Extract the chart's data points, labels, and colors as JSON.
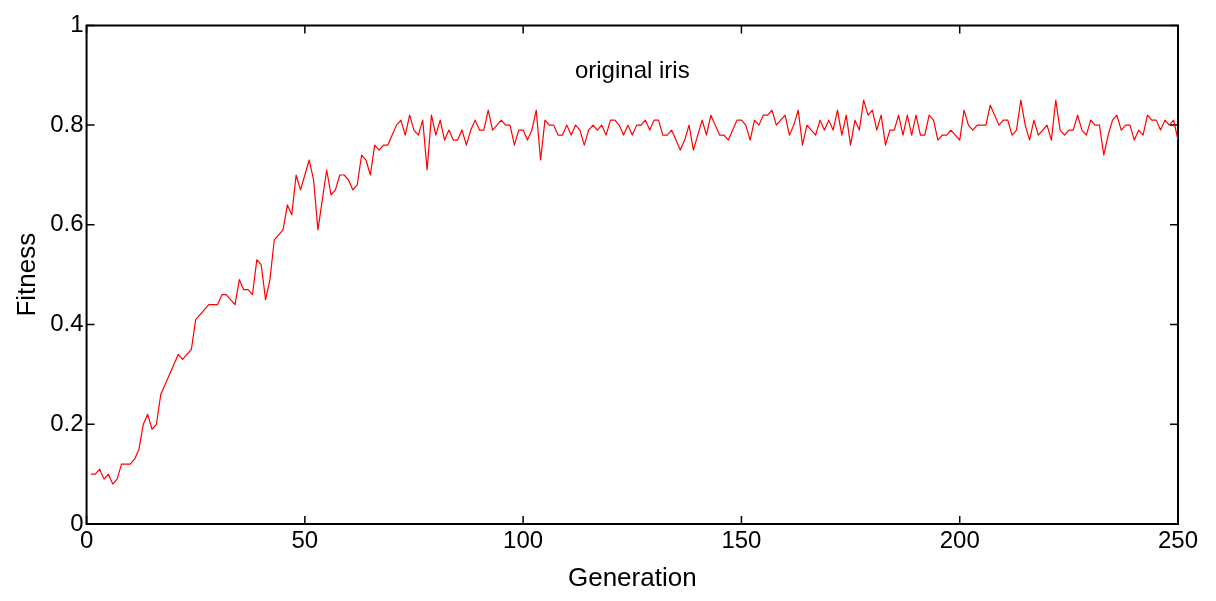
{
  "chart_data": {
    "type": "line",
    "xlabel": "Generation",
    "ylabel": "Fitness",
    "annotations": [
      "original iris"
    ],
    "xlim": [
      0,
      250
    ],
    "xticks": [
      0,
      50,
      100,
      150,
      200,
      250
    ],
    "ylim": [
      0,
      1
    ],
    "yticks": [
      0,
      0.2,
      0.4,
      0.6,
      0.8,
      1
    ],
    "grid": false,
    "legend": false,
    "marker": "none",
    "line_style": "solid",
    "x": [
      1,
      2,
      3,
      4,
      5,
      6,
      7,
      8,
      9,
      10,
      11,
      12,
      13,
      14,
      15,
      16,
      17,
      18,
      19,
      20,
      21,
      22,
      23,
      24,
      25,
      26,
      27,
      28,
      29,
      30,
      31,
      32,
      33,
      34,
      35,
      36,
      37,
      38,
      39,
      40,
      41,
      42,
      43,
      44,
      45,
      46,
      47,
      48,
      49,
      50,
      51,
      52,
      53,
      54,
      55,
      56,
      57,
      58,
      59,
      60,
      61,
      62,
      63,
      64,
      65,
      66,
      67,
      68,
      69,
      70,
      71,
      72,
      73,
      74,
      75,
      76,
      77,
      78,
      79,
      80,
      81,
      82,
      83,
      84,
      85,
      86,
      87,
      88,
      89,
      90,
      91,
      92,
      93,
      94,
      95,
      96,
      97,
      98,
      99,
      100,
      101,
      102,
      103,
      104,
      105,
      106,
      107,
      108,
      109,
      110,
      111,
      112,
      113,
      114,
      115,
      116,
      117,
      118,
      119,
      120,
      121,
      122,
      123,
      124,
      125,
      126,
      127,
      128,
      129,
      130,
      131,
      132,
      133,
      134,
      135,
      136,
      137,
      138,
      139,
      140,
      141,
      142,
      143,
      144,
      145,
      146,
      147,
      148,
      149,
      150,
      151,
      152,
      153,
      154,
      155,
      156,
      157,
      158,
      159,
      160,
      161,
      162,
      163,
      164,
      165,
      166,
      167,
      168,
      169,
      170,
      171,
      172,
      173,
      174,
      175,
      176,
      177,
      178,
      179,
      180,
      181,
      182,
      183,
      184,
      185,
      186,
      187,
      188,
      189,
      190,
      191,
      192,
      193,
      194,
      195,
      196,
      197,
      198,
      199,
      200,
      201,
      202,
      203,
      204,
      205,
      206,
      207,
      208,
      209,
      210,
      211,
      212,
      213,
      214,
      215,
      216,
      217,
      218,
      219,
      220,
      221,
      222,
      223,
      224,
      225,
      226,
      227,
      228,
      229,
      230,
      231,
      232,
      233,
      234,
      235,
      236,
      237,
      238,
      239,
      240,
      241,
      242,
      243,
      244,
      245,
      246,
      247,
      248,
      249,
      250
    ],
    "series": [
      {
        "color": "#ff0000",
        "values": [
          0.1,
          0.1,
          0.11,
          0.09,
          0.1,
          0.08,
          0.09,
          0.12,
          0.12,
          0.12,
          0.13,
          0.15,
          0.2,
          0.22,
          0.19,
          0.2,
          0.26,
          0.28,
          0.3,
          0.32,
          0.34,
          0.33,
          0.34,
          0.35,
          0.41,
          0.42,
          0.43,
          0.44,
          0.44,
          0.44,
          0.46,
          0.46,
          0.45,
          0.44,
          0.49,
          0.47,
          0.47,
          0.46,
          0.53,
          0.52,
          0.45,
          0.49,
          0.57,
          0.58,
          0.59,
          0.64,
          0.62,
          0.7,
          0.67,
          0.7,
          0.73,
          0.69,
          0.59,
          0.65,
          0.71,
          0.66,
          0.67,
          0.7,
          0.7,
          0.69,
          0.67,
          0.68,
          0.74,
          0.73,
          0.7,
          0.76,
          0.75,
          0.76,
          0.76,
          0.78,
          0.8,
          0.81,
          0.78,
          0.82,
          0.79,
          0.78,
          0.81,
          0.71,
          0.82,
          0.78,
          0.81,
          0.77,
          0.79,
          0.77,
          0.77,
          0.79,
          0.76,
          0.79,
          0.81,
          0.79,
          0.79,
          0.83,
          0.79,
          0.8,
          0.81,
          0.8,
          0.8,
          0.76,
          0.79,
          0.79,
          0.77,
          0.79,
          0.83,
          0.73,
          0.81,
          0.8,
          0.8,
          0.78,
          0.78,
          0.8,
          0.78,
          0.8,
          0.79,
          0.76,
          0.79,
          0.8,
          0.79,
          0.8,
          0.78,
          0.81,
          0.81,
          0.8,
          0.78,
          0.8,
          0.78,
          0.8,
          0.8,
          0.81,
          0.79,
          0.81,
          0.81,
          0.78,
          0.78,
          0.79,
          0.77,
          0.75,
          0.77,
          0.8,
          0.75,
          0.78,
          0.81,
          0.78,
          0.82,
          0.8,
          0.78,
          0.78,
          0.77,
          0.79,
          0.81,
          0.81,
          0.8,
          0.77,
          0.81,
          0.8,
          0.82,
          0.82,
          0.83,
          0.8,
          0.81,
          0.82,
          0.78,
          0.8,
          0.83,
          0.76,
          0.8,
          0.79,
          0.78,
          0.81,
          0.79,
          0.81,
          0.79,
          0.83,
          0.78,
          0.82,
          0.76,
          0.81,
          0.79,
          0.85,
          0.82,
          0.83,
          0.79,
          0.82,
          0.76,
          0.79,
          0.79,
          0.82,
          0.78,
          0.82,
          0.78,
          0.82,
          0.78,
          0.78,
          0.82,
          0.81,
          0.77,
          0.78,
          0.78,
          0.79,
          0.78,
          0.77,
          0.83,
          0.8,
          0.79,
          0.8,
          0.8,
          0.8,
          0.84,
          0.82,
          0.8,
          0.81,
          0.81,
          0.78,
          0.79,
          0.85,
          0.8,
          0.77,
          0.81,
          0.78,
          0.79,
          0.8,
          0.77,
          0.85,
          0.79,
          0.78,
          0.79,
          0.79,
          0.82,
          0.79,
          0.78,
          0.81,
          0.8,
          0.8,
          0.74,
          0.78,
          0.81,
          0.82,
          0.79,
          0.8,
          0.8,
          0.77,
          0.79,
          0.78,
          0.82,
          0.81,
          0.81,
          0.79,
          0.81,
          0.8,
          0.81,
          0.77
        ]
      }
    ]
  }
}
